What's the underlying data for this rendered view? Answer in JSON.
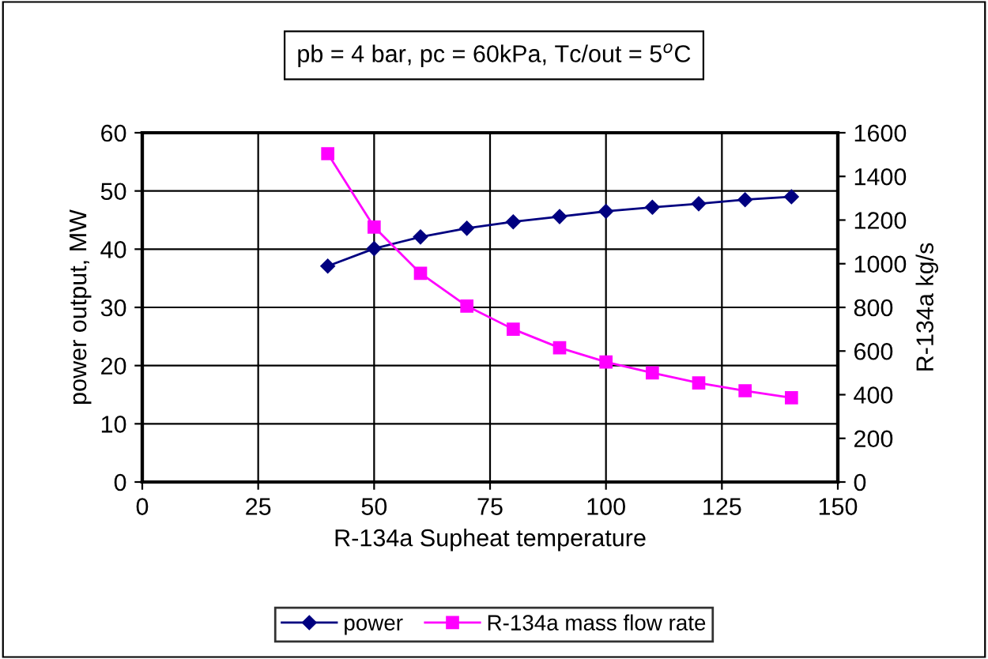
{
  "chart_data": {
    "type": "line",
    "title": "pb = 4 bar, pc = 60kPa, Tc/out = 5$^{o}$C",
    "xlabel": "R-134a Supheat temperature",
    "ylabel": "power output, MW",
    "y2label": "R-134a kg/s",
    "x": [
      40,
      50,
      60,
      70,
      80,
      90,
      100,
      110,
      120,
      130,
      140
    ],
    "series": [
      {
        "name": "power",
        "color": "#000080",
        "marker": "diamond",
        "values": [
          37.1,
          40.1,
          42.1,
          43.6,
          44.7,
          45.6,
          46.5,
          47.2,
          47.8,
          48.5,
          49.0
        ]
      },
      {
        "name": "R-134a mass flow rate",
        "color": "#ff00ff",
        "marker": "square",
        "axis": "y2",
        "values": [
          1504,
          1168,
          956,
          806,
          700,
          615,
          550,
          500,
          454,
          418,
          386
        ]
      }
    ],
    "xlim": [
      0,
      150
    ],
    "xticks": [
      0,
      25,
      50,
      75,
      100,
      125,
      150
    ],
    "ylim": [
      0,
      60
    ],
    "yticks": [
      0,
      10,
      20,
      30,
      40,
      50,
      60
    ],
    "y2lim": [
      0,
      1600
    ],
    "y2ticks": [
      0,
      200,
      400,
      600,
      800,
      1000,
      1200,
      1400,
      1600
    ],
    "grid": true,
    "legend": "bottom",
    "line_style": "solid"
  }
}
